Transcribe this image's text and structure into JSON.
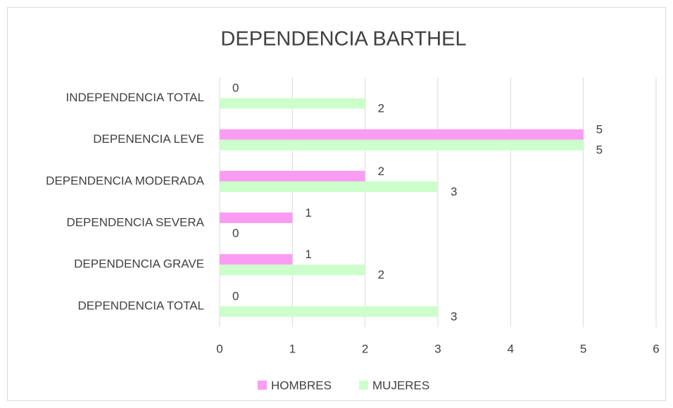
{
  "chart_data": {
    "type": "bar",
    "orientation": "horizontal",
    "title": "DEPENDENCIA BARTHEL",
    "categories": [
      "INDEPENDENCIA TOTAL",
      "DEPENENCIA LEVE",
      "DEPENDENCIA MODERADA",
      "DEPENDENCIA SEVERA",
      "DEPENDENCIA GRAVE",
      "DEPENDENCIA TOTAL"
    ],
    "series": [
      {
        "name": "HOMBRES",
        "color": "#fa9cf2",
        "values": [
          0,
          5,
          2,
          1,
          1,
          0
        ]
      },
      {
        "name": "MUJERES",
        "color": "#ccffcc",
        "values": [
          2,
          5,
          3,
          0,
          2,
          3
        ]
      }
    ],
    "xlim": [
      0,
      6
    ],
    "xticks": [
      0,
      1,
      2,
      3,
      4,
      5,
      6
    ],
    "grid": true,
    "legend": "bottom"
  }
}
